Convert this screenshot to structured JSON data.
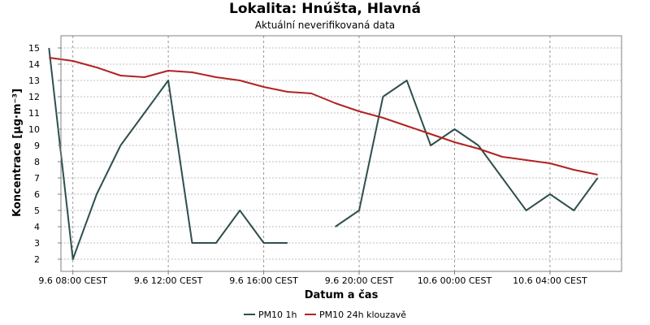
{
  "colors": {
    "pm10_1h": "#2f4f4f",
    "pm10_24h": "#b22222",
    "grid": "#bfbfbf",
    "plot_bg": "#ffffff",
    "frame": "#808080"
  },
  "chart_data": {
    "type": "line",
    "title": "Lokalita: Hnúšta, Hlavná",
    "subtitle": "Aktuální neverifikovaná data",
    "xlabel": "Datum a čas",
    "ylabel": "Koncentrace [µg·m⁻³]",
    "ylim": [
      1.25,
      15.75
    ],
    "yticks": [
      2,
      3,
      4,
      5,
      6,
      7,
      8,
      9,
      10,
      11,
      12,
      13,
      14,
      15
    ],
    "xlim": [
      "9.6 07:30",
      "10.6 07:00"
    ],
    "xticks": [
      "9.6 08:00 CEST",
      "9.6 12:00 CEST",
      "9.6 16:00 CEST",
      "9.6 20:00 CEST",
      "10.6 00:00 CEST",
      "10.6 04:00 CEST"
    ],
    "grid": true,
    "legend_position": "bottom",
    "x": [
      "9.6 07:00",
      "9.6 08:00",
      "9.6 09:00",
      "9.6 10:00",
      "9.6 11:00",
      "9.6 12:00",
      "9.6 13:00",
      "9.6 14:00",
      "9.6 15:00",
      "9.6 16:00",
      "9.6 17:00",
      "9.6 18:00",
      "9.6 19:00",
      "9.6 20:00",
      "9.6 21:00",
      "9.6 22:00",
      "9.6 23:00",
      "10.6 00:00",
      "10.6 01:00",
      "10.6 02:00",
      "10.6 03:00",
      "10.6 04:00",
      "10.6 05:00",
      "10.6 06:00"
    ],
    "series": [
      {
        "name": "PM10 1h",
        "values": [
          15,
          2,
          6,
          9,
          11,
          13,
          3,
          3,
          5,
          3,
          3,
          null,
          4,
          5,
          12,
          13,
          9,
          10,
          9,
          7,
          5,
          6,
          5,
          7
        ]
      },
      {
        "name": "PM10 24h klouzavě",
        "values": [
          14.4,
          14.2,
          13.8,
          13.3,
          13.2,
          13.6,
          13.5,
          13.2,
          13.0,
          12.6,
          12.3,
          12.2,
          11.6,
          11.1,
          10.7,
          10.2,
          9.7,
          9.2,
          8.8,
          8.3,
          8.1,
          7.9,
          7.5,
          7.2
        ]
      }
    ]
  }
}
